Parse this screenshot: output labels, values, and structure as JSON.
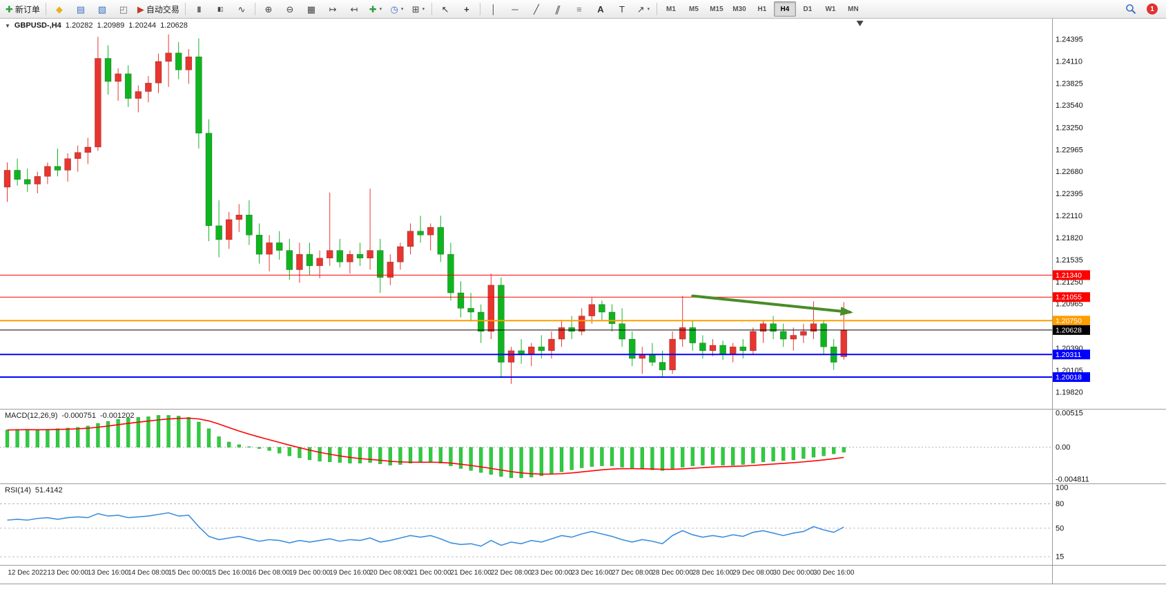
{
  "toolbar": {
    "notification_count": "1",
    "active_timeframe": "H4",
    "timeframes": [
      "M1",
      "M5",
      "M15",
      "M30",
      "H1",
      "H4",
      "D1",
      "W1",
      "MN"
    ],
    "items": [
      {
        "type": "button",
        "name": "new-order",
        "glyph": "✚",
        "glyph_color": "#2f9e44",
        "label": "新订单"
      },
      {
        "type": "sep"
      },
      {
        "type": "icon",
        "name": "market-watch",
        "glyph": "◆",
        "glyph_color": "#e8b019"
      },
      {
        "type": "icon",
        "name": "data-window",
        "glyph": "▤",
        "glyph_color": "#3a6fc4"
      },
      {
        "type": "icon",
        "name": "navigator",
        "glyph": "▧",
        "glyph_color": "#3a6fc4"
      },
      {
        "type": "icon",
        "name": "terminal",
        "glyph": "◰",
        "glyph_color": "#6f6f6f"
      },
      {
        "type": "button",
        "name": "autotrading",
        "glyph": "▶",
        "glyph_color": "#c23a2e",
        "label": "自动交易"
      },
      {
        "type": "sep"
      },
      {
        "type": "icon",
        "name": "bar-chart",
        "glyph": "|||",
        "glyph_color": "#444444",
        "small": true
      },
      {
        "type": "icon",
        "name": "candlestick-chart",
        "glyph": "▮▯",
        "glyph_color": "#444444",
        "small": true
      },
      {
        "type": "icon",
        "name": "line-chart",
        "glyph": "∿",
        "glyph_color": "#444444"
      },
      {
        "type": "sep"
      },
      {
        "type": "icon",
        "name": "zoom-in",
        "glyph": "⊕",
        "glyph_color": "#444444"
      },
      {
        "type": "icon",
        "name": "zoom-out",
        "glyph": "⊖",
        "glyph_color": "#444444"
      },
      {
        "type": "icon",
        "name": "tile-windows",
        "glyph": "▦",
        "glyph_color": "#444444"
      },
      {
        "type": "icon",
        "name": "auto-scroll",
        "glyph": "↦",
        "glyph_color": "#444444"
      },
      {
        "type": "icon",
        "name": "chart-shift",
        "glyph": "↤",
        "glyph_color": "#444444"
      },
      {
        "type": "icon",
        "name": "new-chart",
        "glyph": "✚",
        "glyph_color": "#2f9e44",
        "caret": true
      },
      {
        "type": "icon",
        "name": "periods",
        "glyph": "◷",
        "glyph_color": "#3a6fc4",
        "caret": true
      },
      {
        "type": "icon",
        "name": "templates",
        "glyph": "⊞",
        "glyph_color": "#444444",
        "caret": true
      },
      {
        "type": "sep"
      },
      {
        "type": "icon",
        "name": "cursor",
        "glyph": "↖",
        "glyph_color": "#333333"
      },
      {
        "type": "icon",
        "name": "crosshair",
        "glyph": "+",
        "glyph_color": "#333333",
        "bold": true
      },
      {
        "type": "sep"
      },
      {
        "type": "icon",
        "name": "vertical-line",
        "glyph": "│",
        "glyph_color": "#444444"
      },
      {
        "type": "icon",
        "name": "horizontal-line",
        "glyph": "─",
        "glyph_color": "#444444"
      },
      {
        "type": "icon",
        "name": "trend-line",
        "glyph": "╱",
        "glyph_color": "#444444"
      },
      {
        "type": "icon",
        "name": "channel",
        "glyph": "∥",
        "glyph_color": "#444444",
        "skew": true
      },
      {
        "type": "icon",
        "name": "fibonacci",
        "glyph": "≡",
        "glyph_color": "#777777"
      },
      {
        "type": "icon",
        "name": "text",
        "glyph": "A",
        "glyph_color": "#333333",
        "bold": true
      },
      {
        "type": "icon",
        "name": "text-label",
        "glyph": "T",
        "glyph_color": "#333333"
      },
      {
        "type": "icon",
        "name": "arrows",
        "glyph": "↗",
        "glyph_color": "#444444",
        "caret": true
      },
      {
        "type": "sep"
      },
      {
        "type": "timeframes"
      }
    ]
  },
  "colors": {
    "bull": "#e8352e",
    "bear": "#0fb51f",
    "macd_bar": "#2ecc40",
    "macd_signal": "#ff0000",
    "rsi_line": "#3e8ede",
    "grid": "#9a9a9a",
    "axis_text": "#111111"
  },
  "chart": {
    "collapse_glyph": "▼",
    "symbol": "GBPUSD-,H4",
    "ohlc": {
      "open": "1.20282",
      "high": "1.20989",
      "low": "1.20244",
      "close": "1.20628"
    },
    "macd": {
      "label": "MACD(12,26,9)",
      "main_value": "-0.000751",
      "signal_value": "-0.001202"
    },
    "rsi": {
      "label": "RSI(14)",
      "value": "51.4142"
    },
    "shift_marker_bar": 84.6,
    "price_axis": {
      "ticks": [
        "1.24395",
        "1.24110",
        "1.23825",
        "1.23540",
        "1.23250",
        "1.22965",
        "1.22680",
        "1.22395",
        "1.22110",
        "1.21820",
        "1.21535",
        "1.21250",
        "1.20965",
        "1.20680",
        "1.20390",
        "1.20105",
        "1.19820"
      ]
    },
    "macd_axis": [
      {
        "t": "0.00515",
        "v": 0.00515
      },
      {
        "t": "0.00",
        "v": 0
      },
      {
        "t": "-0.004811",
        "v": -0.004811
      }
    ],
    "rsi_axis": [
      {
        "t": "100",
        "v": 100
      },
      {
        "t": "80",
        "v": 80
      },
      {
        "t": "50",
        "v": 50
      },
      {
        "t": "15",
        "v": 15
      }
    ],
    "rsi_levels": [
      80,
      50,
      15
    ],
    "levels": [
      {
        "price": 1.2134,
        "color": "#ff0000",
        "width": 1,
        "label": "1.21340",
        "label_bg": "#ff0000",
        "label_fg": "#ffffff"
      },
      {
        "price": 1.21055,
        "color": "#ff0000",
        "width": 1,
        "label": "1.21055",
        "label_bg": "#ff0000",
        "label_fg": "#ffffff"
      },
      {
        "price": 1.2075,
        "color": "#ff9d00",
        "width": 2,
        "label": "1.20750",
        "label_bg": "#ff9d00",
        "label_fg": "#ffffff"
      },
      {
        "price": 1.20628,
        "color": "#000000",
        "width": 1,
        "label": "1.20628",
        "label_bg": "#000000",
        "label_fg": "#ffffff"
      },
      {
        "price": 1.20311,
        "color": "#0000ff",
        "width": 2,
        "label": "1.20311",
        "label_bg": "#0000ff",
        "label_fg": "#ffffff"
      },
      {
        "price": 1.20018,
        "color": "#0000ff",
        "width": 2,
        "label": "1.20018",
        "label_bg": "#0000ff",
        "label_fg": "#ffffff"
      }
    ],
    "arrow": {
      "from_bar": 68,
      "from_price": 1.2107,
      "to_bar": 83.6,
      "to_price": 1.2086,
      "color": "#4a8c27",
      "width": 4
    },
    "time_labels": [
      {
        "bar": 2,
        "text": "12 Dec 2022"
      },
      {
        "bar": 6,
        "text": "13 Dec 00:00"
      },
      {
        "bar": 10,
        "text": "13 Dec 16:00"
      },
      {
        "bar": 14,
        "text": "14 Dec 08:00"
      },
      {
        "bar": 18,
        "text": "15 Dec 00:00"
      },
      {
        "bar": 22,
        "text": "15 Dec 16:00"
      },
      {
        "bar": 26,
        "text": "16 Dec 08:00"
      },
      {
        "bar": 30,
        "text": "19 Dec 00:00"
      },
      {
        "bar": 34,
        "text": "19 Dec 16:00"
      },
      {
        "bar": 38,
        "text": "20 Dec 08:00"
      },
      {
        "bar": 42,
        "text": "21 Dec 00:00"
      },
      {
        "bar": 46,
        "text": "21 Dec 16:00"
      },
      {
        "bar": 50,
        "text": "22 Dec 08:00"
      },
      {
        "bar": 54,
        "text": "23 Dec 00:00"
      },
      {
        "bar": 58,
        "text": "23 Dec 16:00"
      },
      {
        "bar": 62,
        "text": "27 Dec 08:00"
      },
      {
        "bar": 66,
        "text": "28 Dec 00:00"
      },
      {
        "bar": 70,
        "text": "28 Dec 16:00"
      },
      {
        "bar": 74,
        "text": "29 Dec 08:00"
      },
      {
        "bar": 78,
        "text": "30 Dec 00:00"
      },
      {
        "bar": 82,
        "text": "30 Dec 16:00"
      }
    ],
    "chart_data": {
      "type": "candlestick",
      "title": "GBPUSD-,H4",
      "ylim": [
        1.1966,
        1.2462
      ],
      "candles_ohlc": [
        [
          1.2248,
          1.228,
          1.2229,
          1.227
        ],
        [
          1.227,
          1.2285,
          1.225,
          1.2258
        ],
        [
          1.2258,
          1.2272,
          1.2242,
          1.2252
        ],
        [
          1.2252,
          1.2268,
          1.224,
          1.2262
        ],
        [
          1.2262,
          1.228,
          1.2252,
          1.2275
        ],
        [
          1.2275,
          1.2298,
          1.2262,
          1.227
        ],
        [
          1.227,
          1.2292,
          1.2255,
          1.2285
        ],
        [
          1.2285,
          1.2302,
          1.2268,
          1.2293
        ],
        [
          1.2293,
          1.2312,
          1.2278,
          1.23
        ],
        [
          1.23,
          1.2443,
          1.2295,
          1.2415
        ],
        [
          1.2415,
          1.2432,
          1.2368,
          1.2385
        ],
        [
          1.2385,
          1.2402,
          1.236,
          1.2395
        ],
        [
          1.2395,
          1.2406,
          1.2352,
          1.2363
        ],
        [
          1.2363,
          1.238,
          1.2345,
          1.2372
        ],
        [
          1.2372,
          1.2392,
          1.2358,
          1.2383
        ],
        [
          1.2383,
          1.2421,
          1.237,
          1.2411
        ],
        [
          1.2411,
          1.2446,
          1.2378,
          1.2422
        ],
        [
          1.2422,
          1.2436,
          1.2388,
          1.24
        ],
        [
          1.24,
          1.2427,
          1.2382,
          1.2417
        ],
        [
          1.2417,
          1.2441,
          1.2298,
          1.2318
        ],
        [
          1.2318,
          1.2336,
          1.2178,
          1.2198
        ],
        [
          1.2198,
          1.2231,
          1.2157,
          1.218
        ],
        [
          1.218,
          1.2216,
          1.2168,
          1.2206
        ],
        [
          1.2206,
          1.2226,
          1.219,
          1.2212
        ],
        [
          1.2212,
          1.2231,
          1.2173,
          1.2186
        ],
        [
          1.2186,
          1.2201,
          1.2149,
          1.2161
        ],
        [
          1.2161,
          1.2186,
          1.2139,
          1.2176
        ],
        [
          1.2176,
          1.2191,
          1.2154,
          1.2166
        ],
        [
          1.2166,
          1.2181,
          1.2128,
          1.2141
        ],
        [
          1.2141,
          1.2176,
          1.2124,
          1.2161
        ],
        [
          1.2161,
          1.2176,
          1.2134,
          1.2146
        ],
        [
          1.2146,
          1.2166,
          1.213,
          1.2156
        ],
        [
          1.2156,
          1.2241,
          1.2146,
          1.2166
        ],
        [
          1.2166,
          1.2181,
          1.2144,
          1.2151
        ],
        [
          1.2151,
          1.2166,
          1.2136,
          1.2161
        ],
        [
          1.2161,
          1.2176,
          1.2146,
          1.2156
        ],
        [
          1.2156,
          1.2246,
          1.2141,
          1.2166
        ],
        [
          1.2166,
          1.2181,
          1.2111,
          1.2131
        ],
        [
          1.2131,
          1.2161,
          1.2121,
          1.2151
        ],
        [
          1.2151,
          1.2176,
          1.2141,
          1.2171
        ],
        [
          1.2171,
          1.2201,
          1.2161,
          1.2191
        ],
        [
          1.2191,
          1.2211,
          1.2176,
          1.2186
        ],
        [
          1.2186,
          1.2201,
          1.2166,
          1.2196
        ],
        [
          1.2196,
          1.2211,
          1.2151,
          1.2161
        ],
        [
          1.2161,
          1.2176,
          1.2101,
          1.2111
        ],
        [
          1.2111,
          1.2126,
          1.2079,
          1.2091
        ],
        [
          1.2091,
          1.2111,
          1.2074,
          1.2086
        ],
        [
          1.2086,
          1.2096,
          1.2046,
          1.2061
        ],
        [
          1.2061,
          1.2136,
          1.2051,
          1.2121
        ],
        [
          1.2121,
          1.2131,
          1.2001,
          1.2021
        ],
        [
          1.2021,
          1.2041,
          1.1993,
          1.2036
        ],
        [
          1.2036,
          1.2051,
          1.2019,
          1.2031
        ],
        [
          1.2031,
          1.2046,
          1.2016,
          1.2041
        ],
        [
          1.2041,
          1.2056,
          1.2026,
          1.2036
        ],
        [
          1.2036,
          1.2061,
          1.2026,
          1.2051
        ],
        [
          1.2051,
          1.2076,
          1.2041,
          1.2066
        ],
        [
          1.2066,
          1.2081,
          1.2051,
          1.2061
        ],
        [
          1.2061,
          1.2091,
          1.2056,
          1.2081
        ],
        [
          1.2081,
          1.2105,
          1.2071,
          1.2096
        ],
        [
          1.2096,
          1.2101,
          1.2076,
          1.2086
        ],
        [
          1.2086,
          1.2096,
          1.2061,
          1.2071
        ],
        [
          1.2071,
          1.2091,
          1.2041,
          1.2051
        ],
        [
          1.2051,
          1.2061,
          1.2016,
          1.2026
        ],
        [
          1.2026,
          1.2041,
          1.2006,
          1.2031
        ],
        [
          1.2031,
          1.2046,
          1.2016,
          1.2021
        ],
        [
          1.2021,
          1.2036,
          1.2001,
          1.2011
        ],
        [
          1.2011,
          1.2061,
          1.2006,
          1.2051
        ],
        [
          1.2051,
          1.2107,
          1.2041,
          1.2066
        ],
        [
          1.2066,
          1.2076,
          1.2036,
          1.2046
        ],
        [
          1.2046,
          1.2056,
          1.2026,
          1.2036
        ],
        [
          1.2036,
          1.2051,
          1.2029,
          1.2043
        ],
        [
          1.2043,
          1.2049,
          1.2024,
          1.2031
        ],
        [
          1.2031,
          1.2046,
          1.2021,
          1.2041
        ],
        [
          1.2041,
          1.2051,
          1.2026,
          1.2036
        ],
        [
          1.2036,
          1.2066,
          1.2031,
          1.2061
        ],
        [
          1.2061,
          1.2076,
          1.2046,
          1.2071
        ],
        [
          1.2071,
          1.2081,
          1.2051,
          1.2061
        ],
        [
          1.2061,
          1.2071,
          1.2041,
          1.2051
        ],
        [
          1.2051,
          1.2066,
          1.2036,
          1.2056
        ],
        [
          1.2056,
          1.2071,
          1.2046,
          1.2061
        ],
        [
          1.2061,
          1.21,
          1.2051,
          1.2071
        ],
        [
          1.2071,
          1.2076,
          1.2031,
          1.2041
        ],
        [
          1.2041,
          1.2051,
          1.2011,
          1.2021
        ],
        [
          1.20282,
          1.20989,
          1.20244,
          1.20628
        ]
      ],
      "macd_histogram": [
        0.0026,
        0.0027,
        0.0027,
        0.0026,
        0.0027,
        0.0028,
        0.0029,
        0.003,
        0.0032,
        0.0036,
        0.0039,
        0.0042,
        0.0044,
        0.0045,
        0.0046,
        0.0048,
        0.0048,
        0.0047,
        0.0045,
        0.0038,
        0.0028,
        0.0016,
        0.0008,
        0.0004,
        0.0001,
        -0.0002,
        -0.0005,
        -0.0009,
        -0.0013,
        -0.0016,
        -0.0019,
        -0.0021,
        -0.0022,
        -0.0023,
        -0.0024,
        -0.0024,
        -0.0023,
        -0.0025,
        -0.0027,
        -0.0026,
        -0.0024,
        -0.0023,
        -0.0022,
        -0.0024,
        -0.0028,
        -0.0032,
        -0.0035,
        -0.0038,
        -0.0041,
        -0.0044,
        -0.0046,
        -0.0046,
        -0.0045,
        -0.0043,
        -0.004,
        -0.0037,
        -0.0034,
        -0.0031,
        -0.0029,
        -0.0028,
        -0.0028,
        -0.003,
        -0.0032,
        -0.0033,
        -0.0034,
        -0.0035,
        -0.0033,
        -0.003,
        -0.0028,
        -0.0027,
        -0.0026,
        -0.0027,
        -0.0027,
        -0.0026,
        -0.0024,
        -0.0022,
        -0.0021,
        -0.002,
        -0.0019,
        -0.0017,
        -0.0015,
        -0.0013,
        -0.001,
        -0.000751
      ],
      "rsi_values": [
        60,
        61,
        60,
        62,
        63,
        61,
        63,
        64,
        63,
        68,
        65,
        66,
        63,
        64,
        65,
        67,
        69,
        65,
        66,
        52,
        40,
        36,
        38,
        40,
        37,
        34,
        36,
        35,
        32,
        35,
        33,
        35,
        37,
        34,
        36,
        35,
        38,
        33,
        35,
        38,
        41,
        39,
        41,
        37,
        32,
        30,
        31,
        28,
        35,
        29,
        33,
        31,
        35,
        33,
        37,
        41,
        39,
        43,
        46,
        43,
        40,
        36,
        33,
        36,
        34,
        31,
        41,
        47,
        42,
        39,
        41,
        39,
        42,
        40,
        45,
        47,
        44,
        41,
        44,
        46,
        52,
        48,
        45,
        51.4142
      ]
    }
  }
}
